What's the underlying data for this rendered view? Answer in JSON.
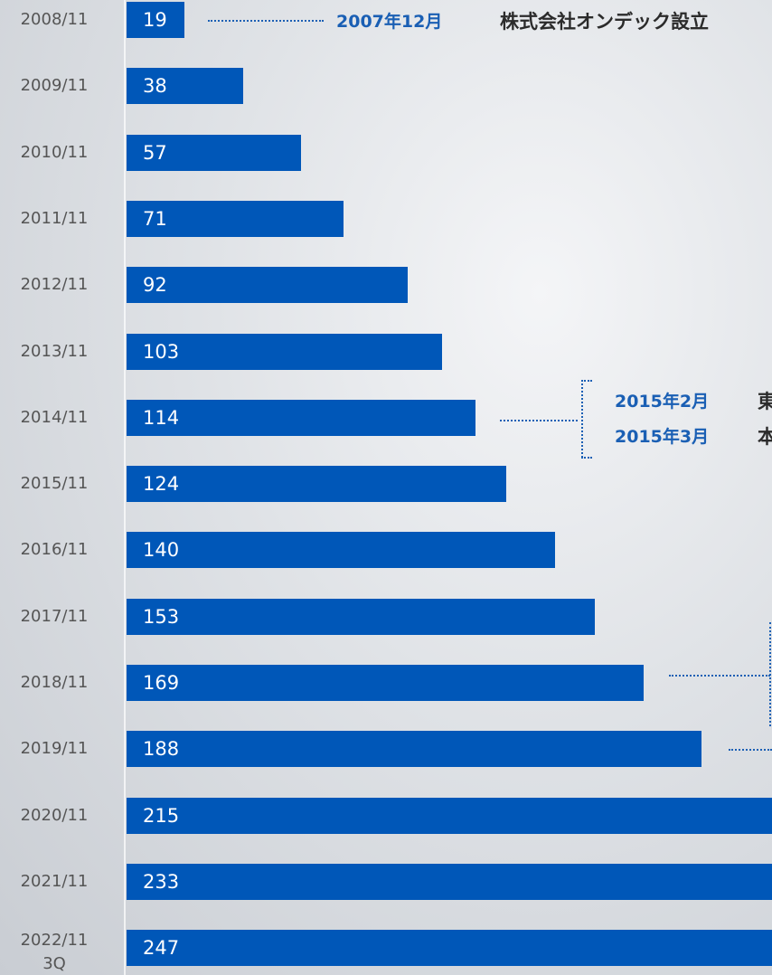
{
  "chart_data": {
    "type": "bar",
    "orientation": "horizontal",
    "color": "#0057b8",
    "categories": [
      "2008/11",
      "2009/11",
      "2010/11",
      "2011/11",
      "2012/11",
      "2013/11",
      "2014/11",
      "2015/11",
      "2016/11",
      "2017/11",
      "2018/11",
      "2019/11",
      "2020/11",
      "2021/11",
      "2022/11\n3Q"
    ],
    "values": [
      19,
      38,
      57,
      71,
      92,
      103,
      114,
      124,
      140,
      153,
      169,
      188,
      215,
      233,
      247
    ],
    "annotations": [
      {
        "date": "2007年12月",
        "text": "株式会社オンデック設立"
      },
      {
        "date": "2015年2月",
        "text": "東"
      },
      {
        "date": "2015年3月",
        "text": "本"
      }
    ]
  }
}
